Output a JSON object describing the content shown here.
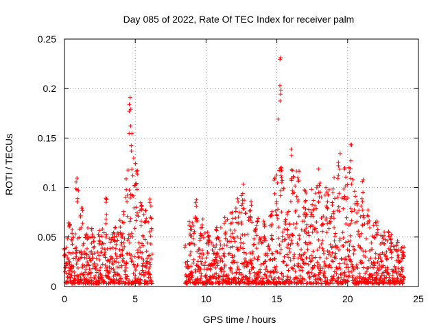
{
  "chart_data": {
    "type": "scatter",
    "title": "Day 085 of 2022, Rate Of TEC Index for receiver palm",
    "xlabel": "GPS time / hours",
    "ylabel": "ROTI / TECUs",
    "xlim": [
      0,
      25
    ],
    "ylim": [
      0,
      0.25
    ],
    "xticks": [
      "0",
      "5",
      "10",
      "15",
      "20",
      "25"
    ],
    "yticks": [
      "0",
      "0.05",
      "0.1",
      "0.15",
      "0.2",
      "0.25"
    ],
    "grid": true,
    "marker": "+",
    "series_color": "#ff0000",
    "data_gap_hours": [
      6.2,
      8.5
    ],
    "envelope": [
      [
        0.0,
        0.04
      ],
      [
        0.3,
        0.07
      ],
      [
        0.6,
        0.06
      ],
      [
        0.9,
        0.11
      ],
      [
        1.2,
        0.08
      ],
      [
        1.6,
        0.06
      ],
      [
        2.0,
        0.06
      ],
      [
        2.5,
        0.06
      ],
      [
        3.0,
        0.09
      ],
      [
        3.5,
        0.06
      ],
      [
        4.0,
        0.07
      ],
      [
        4.4,
        0.12
      ],
      [
        4.6,
        0.2
      ],
      [
        4.8,
        0.16
      ],
      [
        5.1,
        0.13
      ],
      [
        5.4,
        0.09
      ],
      [
        5.8,
        0.08
      ],
      [
        6.1,
        0.09
      ],
      [
        8.5,
        0.06
      ],
      [
        8.9,
        0.07
      ],
      [
        9.3,
        0.09
      ],
      [
        9.7,
        0.07
      ],
      [
        10.2,
        0.06
      ],
      [
        10.8,
        0.06
      ],
      [
        11.3,
        0.07
      ],
      [
        11.8,
        0.08
      ],
      [
        12.2,
        0.09
      ],
      [
        12.6,
        0.11
      ],
      [
        13.1,
        0.09
      ],
      [
        13.6,
        0.07
      ],
      [
        14.1,
        0.07
      ],
      [
        14.6,
        0.08
      ],
      [
        14.9,
        0.12
      ],
      [
        15.2,
        0.235
      ],
      [
        15.4,
        0.13
      ],
      [
        15.8,
        0.08
      ],
      [
        16.1,
        0.14
      ],
      [
        16.5,
        0.12
      ],
      [
        17.0,
        0.1
      ],
      [
        17.5,
        0.1
      ],
      [
        18.0,
        0.12
      ],
      [
        18.5,
        0.11
      ],
      [
        19.0,
        0.11
      ],
      [
        19.4,
        0.148
      ],
      [
        19.8,
        0.12
      ],
      [
        20.2,
        0.157
      ],
      [
        20.6,
        0.1
      ],
      [
        21.0,
        0.11
      ],
      [
        21.5,
        0.08
      ],
      [
        22.0,
        0.07
      ],
      [
        22.5,
        0.06
      ],
      [
        23.0,
        0.06
      ],
      [
        23.5,
        0.05
      ],
      [
        23.9,
        0.04
      ]
    ],
    "baseline_min": 0.003
  }
}
